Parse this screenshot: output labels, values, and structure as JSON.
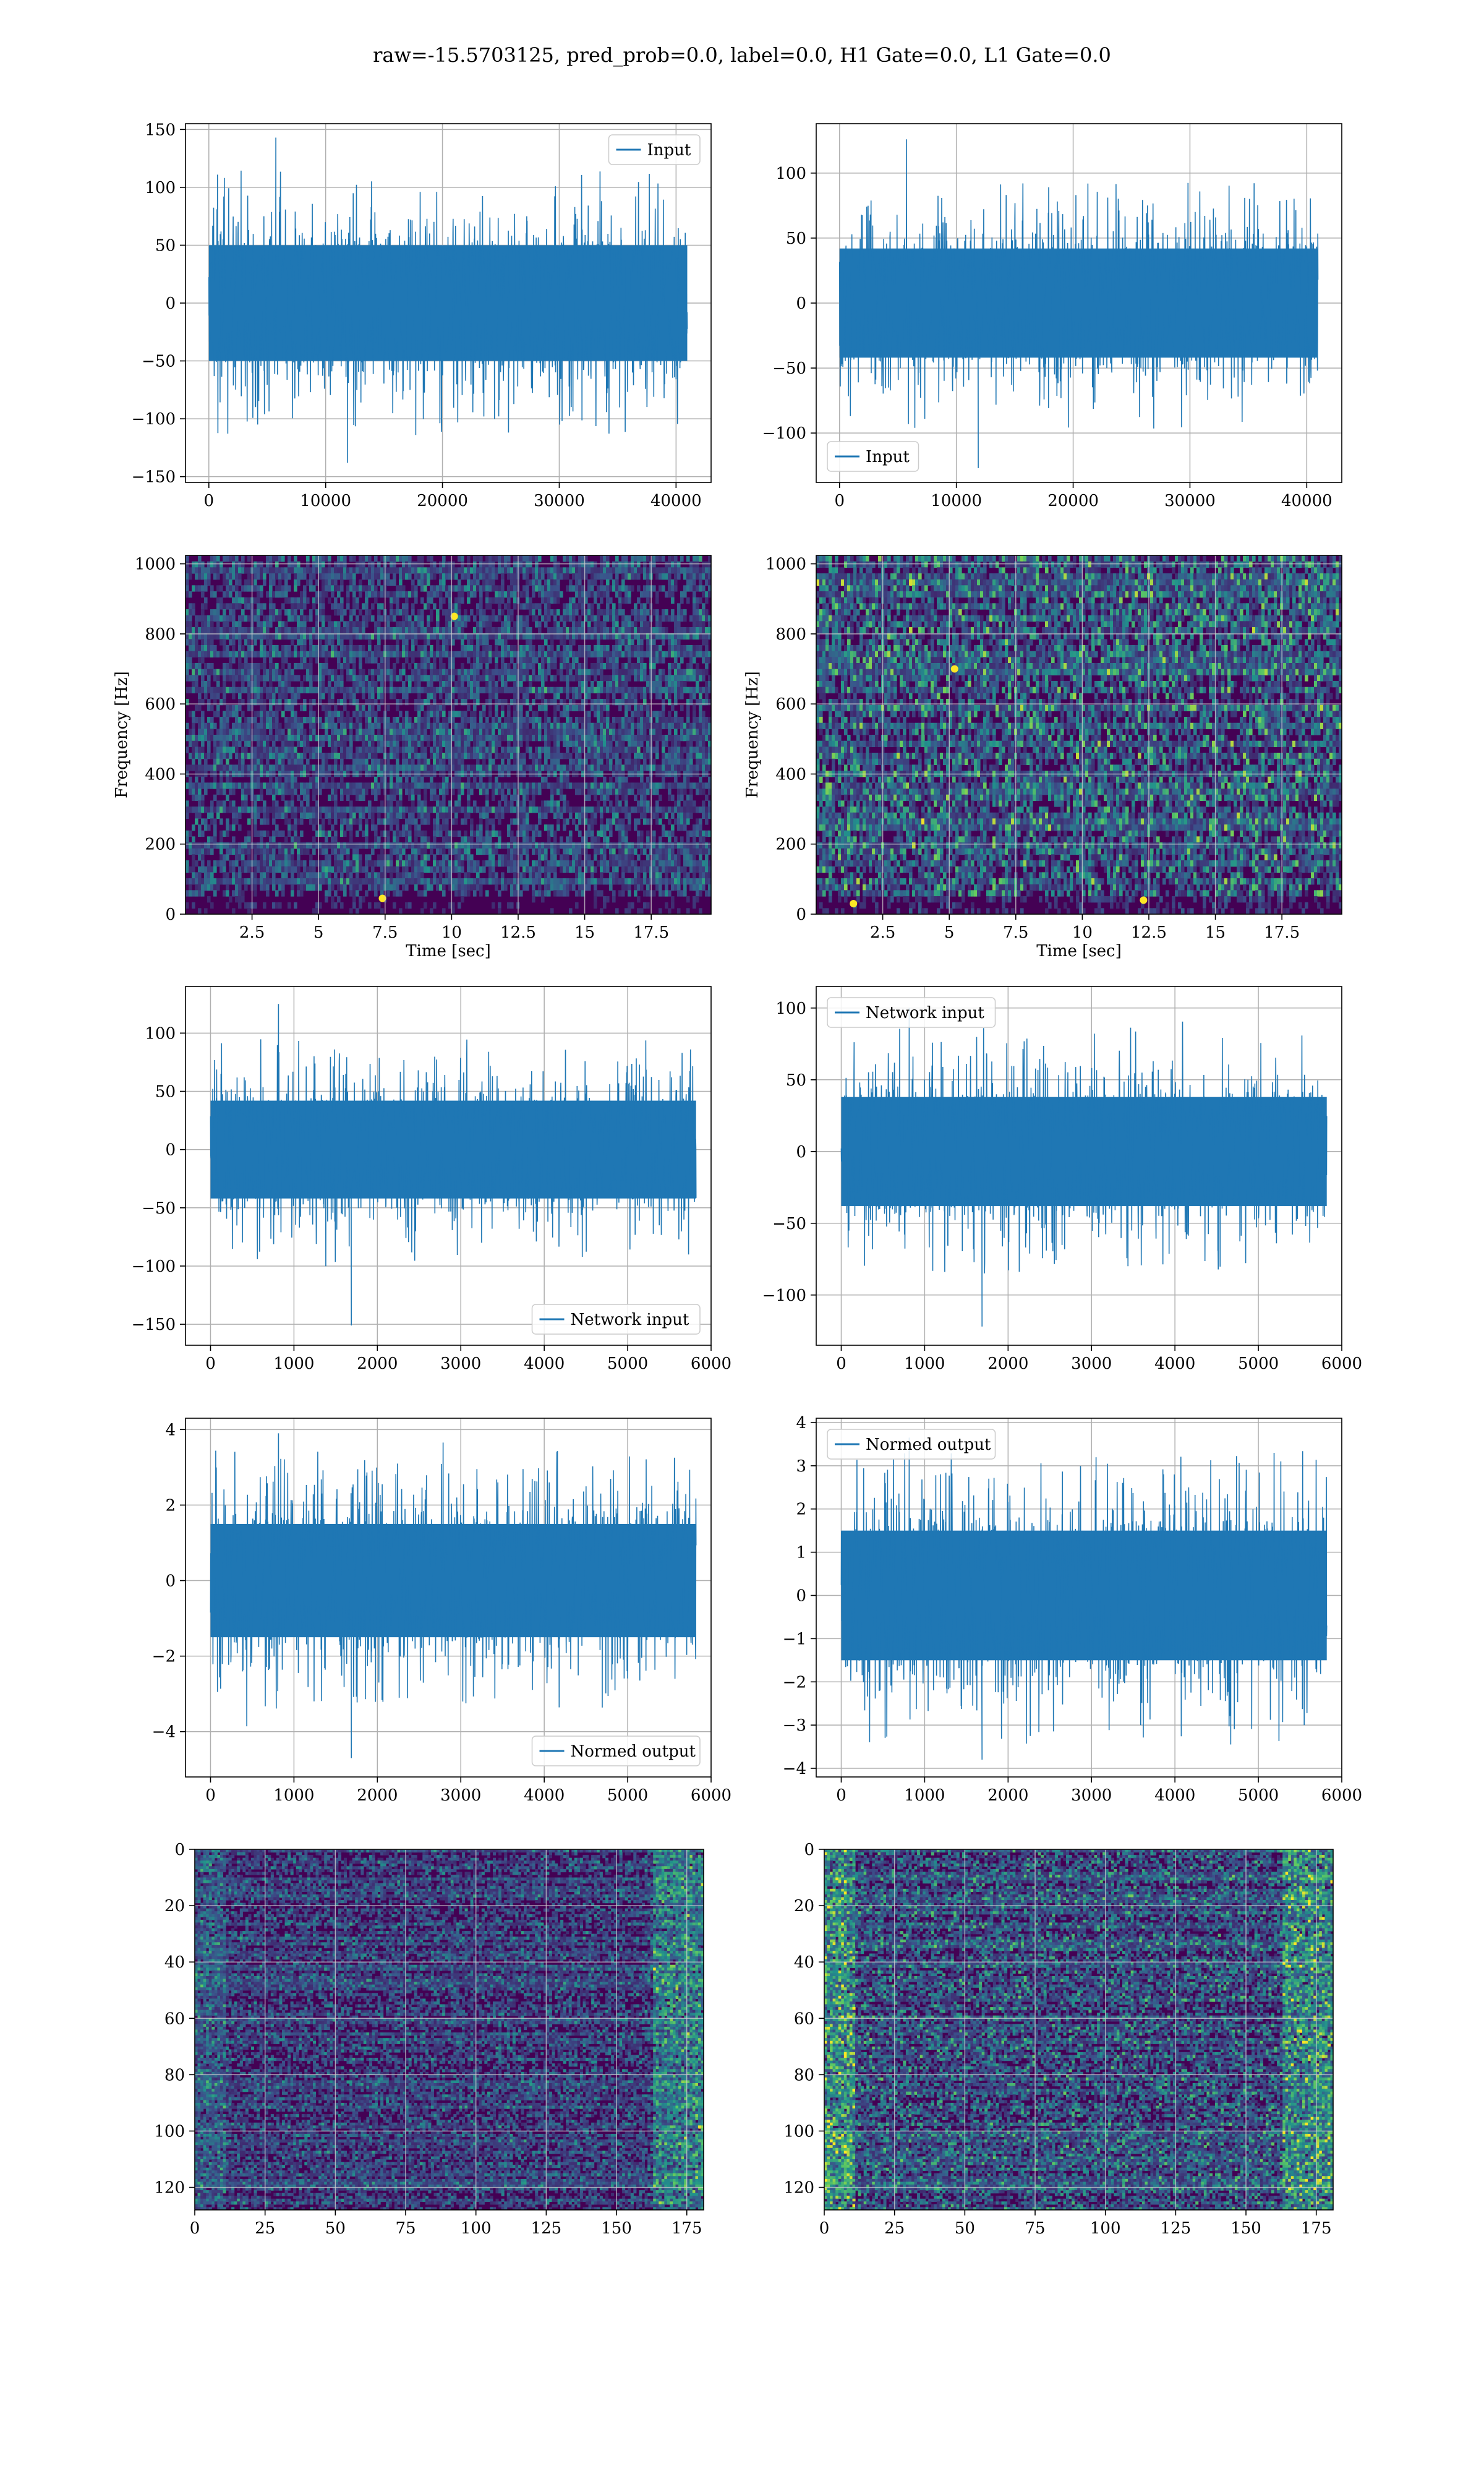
{
  "figure": {
    "title": "raw=-15.5703125, pred_prob=0.0, label=0.0, H1 Gate=0.0, L1 Gate=0.0"
  },
  "colors": {
    "series": "#1f77b4",
    "grid": "#b0b0b0",
    "viridis_dark": "#440154",
    "viridis_mid": "#21918c",
    "viridis_bright": "#fde725"
  },
  "chart_data": [
    {
      "id": "h1-input",
      "type": "line",
      "title": "",
      "xlabel": "",
      "ylabel": "",
      "xlim": [
        -2000,
        43000
      ],
      "ylim": [
        -155,
        155
      ],
      "xticks": [
        0,
        10000,
        20000,
        30000,
        40000
      ],
      "yticks": [
        -150,
        -100,
        -50,
        0,
        50,
        100,
        150
      ],
      "grid": true,
      "legend": "top-right",
      "series": [
        {
          "name": "Input",
          "x_start": 0,
          "x_end": 40960,
          "core": 50,
          "min": -138,
          "max": 143
        }
      ]
    },
    {
      "id": "l1-input",
      "type": "line",
      "title": "",
      "xlabel": "",
      "ylabel": "",
      "xlim": [
        -2000,
        43000
      ],
      "ylim": [
        -138,
        138
      ],
      "xticks": [
        0,
        10000,
        20000,
        30000,
        40000
      ],
      "yticks": [
        -100,
        -50,
        0,
        50,
        100
      ],
      "grid": true,
      "legend": "bottom-left",
      "series": [
        {
          "name": "Input",
          "x_start": 0,
          "x_end": 40960,
          "core": 42,
          "min": -127,
          "max": 126
        }
      ]
    },
    {
      "id": "h1-spectrogram",
      "type": "heatmap",
      "title": "",
      "xlabel": "Time [sec]",
      "ylabel": "Frequency [Hz]",
      "xlim": [
        0,
        19.75
      ],
      "ylim": [
        0,
        1024
      ],
      "xticks": [
        2.5,
        5.0,
        7.5,
        10.0,
        12.5,
        15.0,
        17.5
      ],
      "yticks": [
        0,
        200,
        400,
        600,
        800,
        1000
      ],
      "grid": true,
      "colormap": "viridis",
      "intensity": 0.55,
      "hot_spots": [
        {
          "t": 7.4,
          "f": 45
        },
        {
          "t": 10.1,
          "f": 850
        }
      ]
    },
    {
      "id": "l1-spectrogram",
      "type": "heatmap",
      "title": "",
      "xlabel": "Time [sec]",
      "ylabel": "Frequency [Hz]",
      "xlim": [
        0,
        19.75
      ],
      "ylim": [
        0,
        1024
      ],
      "xticks": [
        2.5,
        5.0,
        7.5,
        10.0,
        12.5,
        15.0,
        17.5
      ],
      "yticks": [
        0,
        200,
        400,
        600,
        800,
        1000
      ],
      "grid": true,
      "colormap": "viridis",
      "intensity": 0.85,
      "hot_spots": [
        {
          "t": 1.4,
          "f": 30
        },
        {
          "t": 5.2,
          "f": 700
        },
        {
          "t": 12.3,
          "f": 40
        }
      ]
    },
    {
      "id": "h1-network-input",
      "type": "line",
      "title": "",
      "xlabel": "",
      "ylabel": "",
      "xlim": [
        -300,
        6000
      ],
      "ylim": [
        -168,
        140
      ],
      "xticks": [
        0,
        1000,
        2000,
        3000,
        4000,
        5000,
        6000
      ],
      "yticks": [
        -150,
        -100,
        -50,
        0,
        50,
        100
      ],
      "grid": true,
      "legend": "bottom-right",
      "series": [
        {
          "name": "Network input",
          "x_start": 0,
          "x_end": 5820,
          "core": 42,
          "min": -151,
          "max": 125
        }
      ]
    },
    {
      "id": "l1-network-input",
      "type": "line",
      "title": "",
      "xlabel": "",
      "ylabel": "",
      "xlim": [
        -300,
        6000
      ],
      "ylim": [
        -135,
        115
      ],
      "xticks": [
        0,
        1000,
        2000,
        3000,
        4000,
        5000,
        6000
      ],
      "yticks": [
        -100,
        -50,
        0,
        50,
        100
      ],
      "grid": true,
      "legend": "top-left",
      "series": [
        {
          "name": "Network input",
          "x_start": 0,
          "x_end": 5820,
          "core": 38,
          "min": -122,
          "max": 100
        }
      ]
    },
    {
      "id": "h1-normed-output",
      "type": "line",
      "title": "",
      "xlabel": "",
      "ylabel": "",
      "xlim": [
        -300,
        6000
      ],
      "ylim": [
        -5.2,
        4.3
      ],
      "xticks": [
        0,
        1000,
        2000,
        3000,
        4000,
        5000,
        6000
      ],
      "yticks": [
        -4,
        -2,
        0,
        2,
        4
      ],
      "grid": true,
      "legend": "bottom-right",
      "series": [
        {
          "name": "Normed output",
          "x_start": 0,
          "x_end": 5820,
          "core": 1.5,
          "min": -4.7,
          "max": 3.9
        }
      ]
    },
    {
      "id": "l1-normed-output",
      "type": "line",
      "title": "",
      "xlabel": "",
      "ylabel": "",
      "xlim": [
        -300,
        6000
      ],
      "ylim": [
        -4.2,
        4.1
      ],
      "xticks": [
        0,
        1000,
        2000,
        3000,
        4000,
        5000,
        6000
      ],
      "yticks": [
        -4,
        -3,
        -2,
        -1,
        0,
        1,
        2,
        3,
        4
      ],
      "grid": true,
      "legend": "top-left",
      "series": [
        {
          "name": "Normed output",
          "x_start": 0,
          "x_end": 5820,
          "core": 1.5,
          "min": -3.8,
          "max": 3.65
        }
      ]
    },
    {
      "id": "h1-feature-map",
      "type": "heatmap",
      "title": "",
      "xlabel": "",
      "ylabel": "",
      "xlim": [
        0,
        181
      ],
      "ylim": [
        128,
        0
      ],
      "xticks": [
        0,
        25,
        50,
        75,
        100,
        125,
        150,
        175
      ],
      "yticks": [
        0,
        20,
        40,
        60,
        80,
        100,
        120
      ],
      "grid": true,
      "colormap": "viridis",
      "intensity": 0.5,
      "bright_edges": "right"
    },
    {
      "id": "l1-feature-map",
      "type": "heatmap",
      "title": "",
      "xlabel": "",
      "ylabel": "",
      "xlim": [
        0,
        181
      ],
      "ylim": [
        128,
        0
      ],
      "xticks": [
        0,
        25,
        50,
        75,
        100,
        125,
        150,
        175
      ],
      "yticks": [
        0,
        20,
        40,
        60,
        80,
        100,
        120
      ],
      "grid": true,
      "colormap": "viridis",
      "intensity": 0.7,
      "bright_edges": "both"
    }
  ]
}
